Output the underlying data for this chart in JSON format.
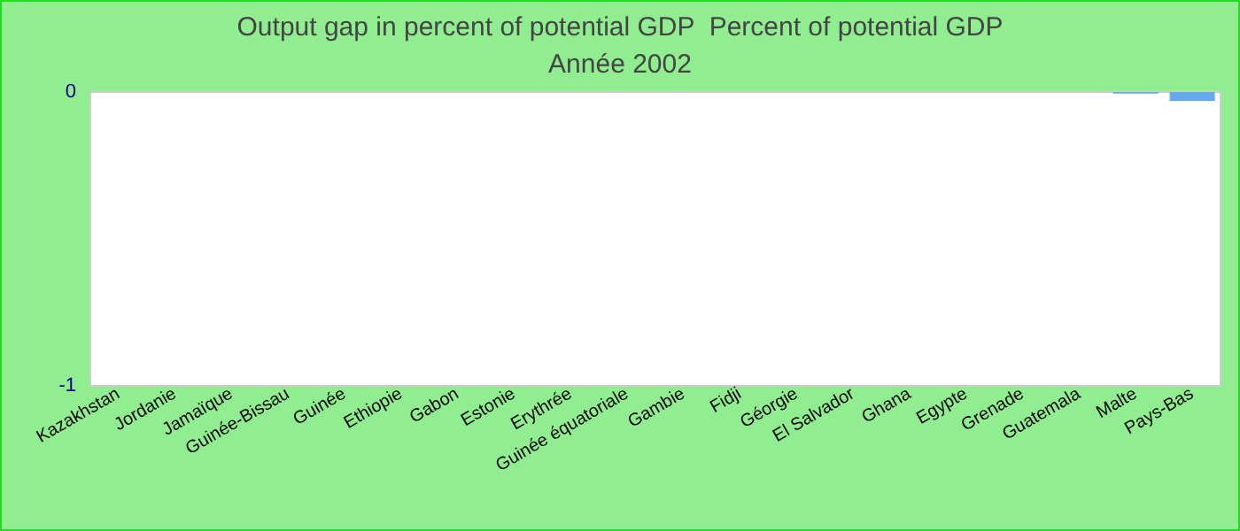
{
  "chart_data": {
    "type": "bar",
    "title": "Output gap in percent of potential GDP  Percent of potential GDP",
    "subtitle": "Année 2002",
    "categories": [
      "Kazakhstan",
      "Jordanie",
      "Jamaïque",
      "Guinée-Bissau",
      "Guinée",
      "Ethiopie",
      "Gabon",
      "Estonie",
      "Erythrée",
      "Guinée équatoriale",
      "Gambie",
      "Fidji",
      "Géorgie",
      "El Salvador",
      "Ghana",
      "Egypte",
      "Grenade",
      "Guatemala",
      "Malte",
      "Pays-Bas"
    ],
    "values": [
      0,
      0,
      0,
      0,
      0,
      0,
      0,
      0,
      0,
      0,
      0,
      0,
      0,
      0,
      0,
      0,
      0,
      0,
      -0.005,
      -0.03
    ],
    "color": "#66aaee",
    "ylim": [
      -1,
      0
    ],
    "yticks": [
      -1,
      0
    ],
    "grid": false
  }
}
